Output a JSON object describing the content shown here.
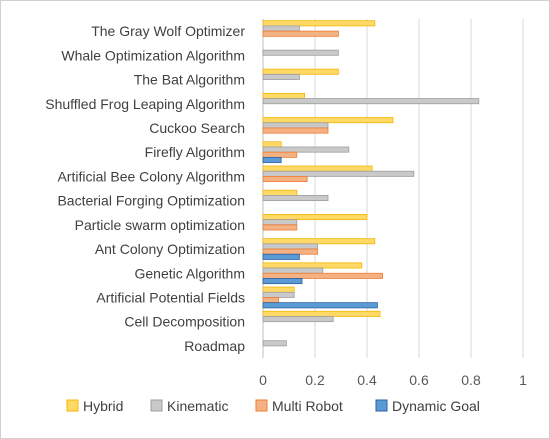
{
  "chart_data": {
    "type": "bar",
    "orientation": "horizontal",
    "categories": [
      "The Gray Wolf Optimizer",
      "Whale Optimization Algorithm",
      "The Bat Algorithm",
      "Shuffled Frog Leaping Algorithm",
      "Cuckoo Search",
      "Firefly Algorithm",
      "Artificial Bee Colony Algorithm",
      "Bacterial Forging Optimization",
      "Particle swarm optimization",
      "Ant Colony Optimization",
      "Genetic Algorithm",
      "Artificial Potential Fields",
      "Cell Decomposition",
      "Roadmap"
    ],
    "series": [
      {
        "name": "Hybrid",
        "color": "#ffd966",
        "stroke": "#f2b705",
        "values": [
          0.43,
          0,
          0.29,
          0.16,
          0.5,
          0.07,
          0.42,
          0.13,
          0.4,
          0.43,
          0.38,
          0.12,
          0.45,
          0
        ]
      },
      {
        "name": "Kinematic",
        "color": "#c9c9c9",
        "stroke": "#9e9e9e",
        "values": [
          0.14,
          0.29,
          0.14,
          0.83,
          0.25,
          0.33,
          0.58,
          0.25,
          0.13,
          0.21,
          0.23,
          0.12,
          0.27,
          0.09
        ]
      },
      {
        "name": "Multi Robot",
        "color": "#f4b183",
        "stroke": "#ed7d31",
        "values": [
          0.29,
          0,
          0,
          0,
          0.25,
          0.13,
          0.17,
          0,
          0.13,
          0.21,
          0.46,
          0.06,
          0,
          0
        ]
      },
      {
        "name": "Dynamic Goal",
        "color": "#5b9bd5",
        "stroke": "#2e5f9e",
        "values": [
          0,
          0,
          0,
          0,
          0,
          0.07,
          0,
          0,
          0,
          0.14,
          0.15,
          0.44,
          0,
          0
        ]
      }
    ],
    "x_ticks": [
      "0",
      "0.2",
      "0.4",
      "0.6",
      "0.8",
      "1"
    ],
    "xlim": [
      0,
      1
    ],
    "grid": true,
    "legend_position": "bottom"
  }
}
